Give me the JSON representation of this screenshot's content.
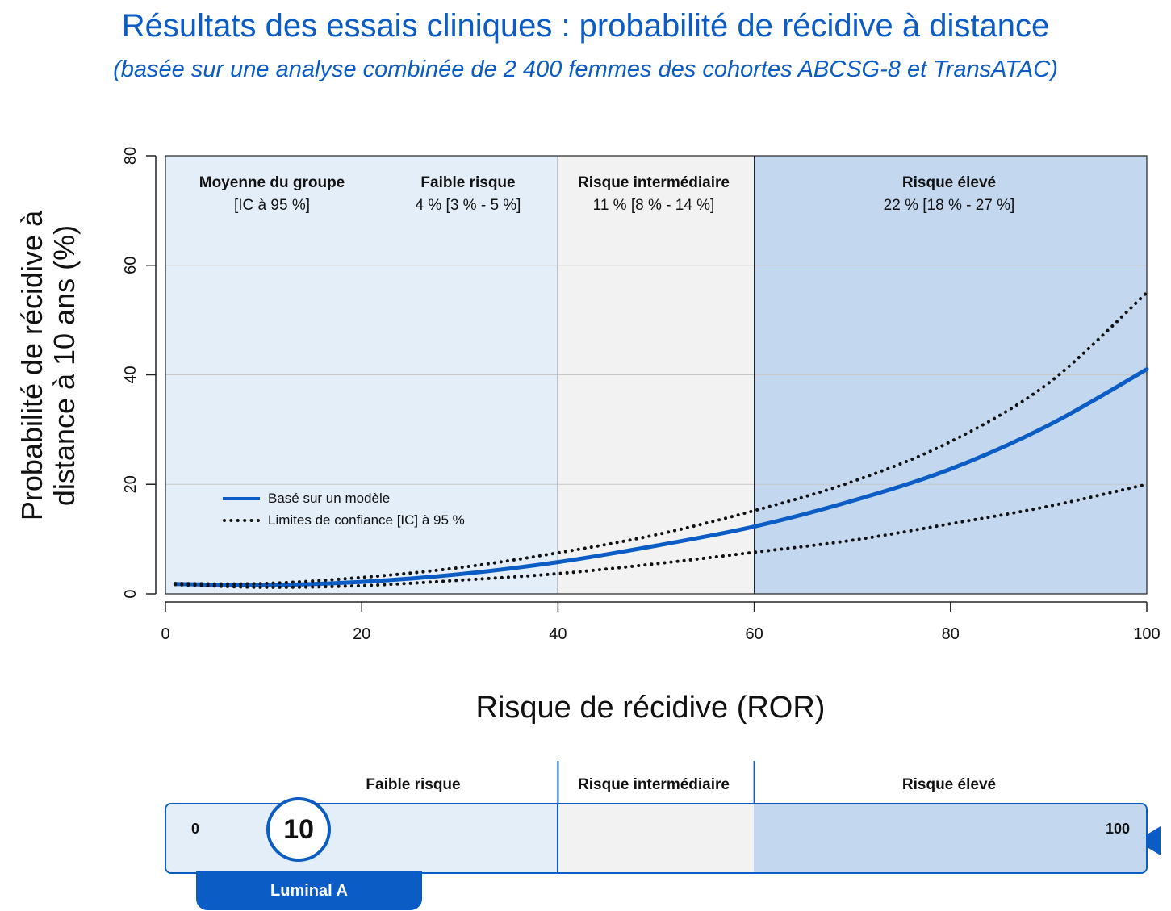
{
  "header": {
    "title": "Résultats des essais cliniques : probabilité de récidive à distance",
    "subtitle": "(basée sur une analyse combinée de 2 400 femmes des cohortes ABCSG-8 et TransATAC)"
  },
  "chart_data": {
    "type": "line",
    "xlabel": "Risque de récidive (ROR)",
    "ylabel": "Probabilité de récidive à distance à 10 ans (%)",
    "xlim": [
      0,
      100
    ],
    "ylim": [
      0,
      80
    ],
    "x_ticks": [
      "0",
      "20",
      "40",
      "60",
      "80",
      "100"
    ],
    "y_ticks": [
      "0",
      "20",
      "40",
      "60",
      "80"
    ],
    "grid": "horizontal",
    "legend_placement": "lower-left",
    "x": [
      1,
      10,
      20,
      30,
      40,
      50,
      60,
      70,
      80,
      90,
      100
    ],
    "series": [
      {
        "name": "Basé sur un modèle",
        "style": "solid",
        "color": "#0b5cc4",
        "values": [
          1.8,
          1.6,
          2.2,
          3.6,
          5.8,
          8.8,
          12.3,
          17.0,
          22.8,
          30.8,
          41.0
        ]
      },
      {
        "name": "Limites de confiance [IC] à 95 %",
        "style": "dotted",
        "color": "#111111",
        "values": [
          1.9,
          1.9,
          3.0,
          4.8,
          7.5,
          10.8,
          15.2,
          20.5,
          27.8,
          38.5,
          55.0
        ]
      },
      {
        "name": "",
        "style": "dotted",
        "color": "#111111",
        "values": [
          1.7,
          1.2,
          1.5,
          2.5,
          3.7,
          5.5,
          7.6,
          9.8,
          12.8,
          16.0,
          20.0
        ]
      }
    ],
    "zones": [
      {
        "name": "Faible risque",
        "range": [
          0,
          40
        ],
        "value": "4 % [3 % - 5 %]",
        "color": "#e4eef9"
      },
      {
        "name": "Risque intermédiaire",
        "range": [
          40,
          60
        ],
        "value": "11 % [8 % - 14 %]",
        "color": "#f2f2f2"
      },
      {
        "name": "Risque élevé",
        "range": [
          60,
          100
        ],
        "value": "22 % [18 % - 27 %]",
        "color": "#c3d7ef"
      }
    ],
    "group_header": {
      "label": "Moyenne du groupe",
      "ci": "[IC à 95 %]"
    }
  },
  "scale": {
    "min_label": "0",
    "max_label": "100",
    "score": "10",
    "score_value": 10,
    "subtype": "Luminal A",
    "zones": [
      "Faible risque",
      "Risque intermédiaire",
      "Risque élevé"
    ]
  }
}
